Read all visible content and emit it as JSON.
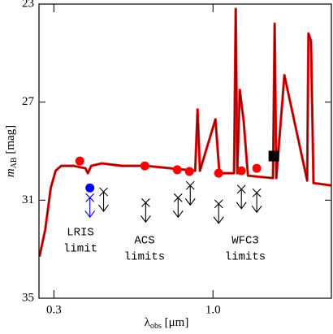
{
  "chart_data": {
    "type": "line",
    "xlabel": [
      "λ",
      "obs",
      " [μm]"
    ],
    "ylabel": [
      "m",
      "AB",
      " [mag]"
    ],
    "xscale": "log",
    "xlim": [
      0.268,
      2.45
    ],
    "ylim": [
      23,
      35
    ],
    "xticks": [
      0.3,
      {
        "value": 1.0,
        "label": "1.0"
      }
    ],
    "yticks": [
      23,
      27,
      31,
      35
    ],
    "series": [
      {
        "marker": "line",
        "color": "#8b0000",
        "x": [
          0.269,
          0.281,
          0.293,
          0.304,
          0.317,
          0.348,
          0.381,
          0.388,
          0.398,
          0.431,
          0.503,
          0.604,
          0.726,
          0.874,
          0.89,
          0.906,
          1.019,
          1.05,
          1.173,
          1.188,
          1.202,
          1.225,
          1.262,
          1.303,
          1.575,
          1.595,
          1.615,
          1.717,
          2.04,
          2.06,
          2.1,
          2.14,
          2.45
        ],
        "values": [
          33.3,
          32.2,
          30.5,
          29.8,
          29.6,
          29.6,
          29.7,
          29.9,
          29.6,
          29.5,
          29.6,
          29.6,
          29.7,
          29.8,
          27.3,
          29.8,
          27.7,
          29.9,
          29.9,
          23.2,
          29.9,
          26.5,
          27.8,
          30.0,
          30.1,
          23.8,
          30.1,
          25.9,
          30.2,
          24.2,
          24.5,
          30.3,
          30.4
        ]
      },
      {
        "marker": "circle",
        "color": "#ff0000",
        "x": [
          0.365,
          0.597,
          0.763,
          0.837,
          1.044,
          1.24,
          1.393
        ],
        "values": [
          29.4,
          29.6,
          29.76,
          29.83,
          29.9,
          29.8,
          29.7
        ]
      },
      {
        "marker": "square",
        "color": "#000000",
        "x": [
          1.585
        ],
        "values": [
          29.2
        ]
      },
      {
        "marker": "circle",
        "color": "#0000ff",
        "x": [
          0.394
        ],
        "values": [
          30.5
        ]
      },
      {
        "marker": "limit",
        "color": "#0000ff",
        "x": [
          0.394
        ],
        "values": [
          30.9
        ]
      },
      {
        "marker": "limit",
        "color": "#000000",
        "x": [
          0.437,
          0.601,
          0.768,
          0.842,
          1.044,
          1.24,
          1.393
        ],
        "values": [
          30.66,
          31.1,
          30.9,
          30.4,
          31.15,
          30.55,
          30.7
        ]
      }
    ],
    "annotations": [
      {
        "lines": [
          "LRIS",
          "limit"
        ],
        "color": "#0000ff"
      },
      {
        "lines": [
          "ACS",
          "limits"
        ],
        "color": "#000000"
      },
      {
        "lines": [
          "WFC3",
          "limits"
        ],
        "color": "#000000"
      }
    ]
  }
}
